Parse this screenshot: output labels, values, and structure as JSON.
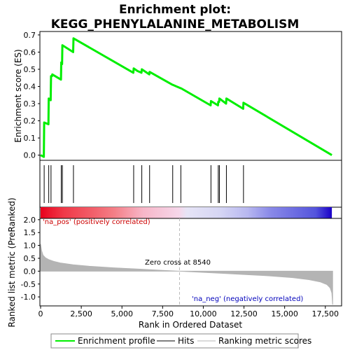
{
  "colors": {
    "es_line": "#00ee00",
    "hit": "#000000",
    "metric_fill": "#b4b4b4",
    "pos_text": "#cc0000",
    "neg_text": "#0000bb",
    "zero_line": "#bbbbbb",
    "heat_pos_strong": "#e8001c",
    "heat_neg_strong": "#1a00c8"
  },
  "chart_data": [
    {
      "type": "line",
      "title_line1": "Enrichment plot:",
      "title_line2": "KEGG_PHENYLALANINE_METABOLISM",
      "ylabel": "Enrichment score (ES)",
      "xlim": [
        0,
        18500
      ],
      "ylim": [
        -0.03,
        0.72
      ],
      "yticks": [
        0.0,
        0.1,
        0.2,
        0.3,
        0.4,
        0.5,
        0.6,
        0.7
      ],
      "ytick_labels": [
        "0.0",
        "0.1",
        "0.2",
        "0.3",
        "0.4",
        "0.5",
        "0.6",
        "0.7"
      ],
      "series": [
        {
          "name": "Enrichment profile",
          "x": [
            0,
            200,
            220,
            480,
            500,
            620,
            640,
            700,
            720,
            1250,
            1270,
            1320,
            1340,
            2000,
            2020,
            5700,
            5720,
            5950,
            6200,
            6220,
            6680,
            6700,
            8100,
            8120,
            8600,
            8620,
            10450,
            10470,
            10900,
            10920,
            10970,
            10990,
            11400,
            11420,
            12450,
            12470,
            17900
          ],
          "y": [
            0.0,
            -0.01,
            0.19,
            0.18,
            0.33,
            0.32,
            0.46,
            0.46,
            0.47,
            0.44,
            0.54,
            0.53,
            0.64,
            0.6,
            0.68,
            0.48,
            0.505,
            0.49,
            0.48,
            0.5,
            0.47,
            0.485,
            0.41,
            0.41,
            0.39,
            0.39,
            0.29,
            0.315,
            0.29,
            0.31,
            0.31,
            0.33,
            0.3,
            0.33,
            0.27,
            0.305,
            0.0
          ]
        }
      ]
    },
    {
      "type": "scatter",
      "series": [
        {
          "name": "Hits",
          "x": [
            220,
            500,
            640,
            1270,
            1340,
            2020,
            5720,
            6220,
            6700,
            8120,
            8620,
            10470,
            10920,
            10990,
            11420,
            12470
          ]
        }
      ]
    },
    {
      "type": "heatmap",
      "gradient_stops": [
        {
          "x": 0,
          "color": "#e8001c"
        },
        {
          "x": 600,
          "color": "#ec1a30"
        },
        {
          "x": 1400,
          "color": "#f03848"
        },
        {
          "x": 3000,
          "color": "#f25a66"
        },
        {
          "x": 4500,
          "color": "#f47e86"
        },
        {
          "x": 6300,
          "color": "#f7b6c8"
        },
        {
          "x": 8500,
          "color": "#f6d7ea"
        },
        {
          "x": 9000,
          "color": "#e6e4f6"
        },
        {
          "x": 11000,
          "color": "#d6d6f4"
        },
        {
          "x": 12700,
          "color": "#b8b8f0"
        },
        {
          "x": 14100,
          "color": "#8a8ae8"
        },
        {
          "x": 16900,
          "color": "#5454dc"
        },
        {
          "x": 17900,
          "color": "#1a00c8"
        }
      ]
    },
    {
      "type": "area",
      "ylabel": "Ranked list metric (PreRanked)",
      "xlabel": "Rank in Ordered Dataset",
      "xlim": [
        0,
        18500
      ],
      "ylim": [
        -1.35,
        2.05
      ],
      "xticks": [
        0,
        2500,
        5000,
        7500,
        10000,
        12500,
        15000,
        17500
      ],
      "xtick_labels": [
        "0",
        "2,500",
        "5,000",
        "7,500",
        "10,000",
        "12,500",
        "15,000",
        "17,500"
      ],
      "yticks": [
        2.0,
        1.5,
        1.0,
        0.5,
        0.0,
        -0.5,
        -1.0
      ],
      "ytick_labels": [
        "2.0",
        "1.5",
        "1.0",
        "0.5",
        "0.0",
        "-0.5",
        "-1.0"
      ],
      "zero_cross": 8540,
      "zero_cross_label": "Zero cross at 8540",
      "pos_label": "'na_pos' (positively correlated)",
      "neg_label": "'na_neg' (negatively correlated)",
      "series": [
        {
          "name": "Ranking metric scores",
          "x": [
            0,
            60,
            150,
            300,
            500,
            800,
            1200,
            2000,
            3000,
            4500,
            6000,
            7500,
            8540,
            9500,
            11000,
            12500,
            14000,
            15500,
            16500,
            17200,
            17600,
            17800,
            17900,
            17950
          ],
          "y": [
            1.05,
            0.8,
            0.62,
            0.52,
            0.45,
            0.38,
            0.32,
            0.25,
            0.19,
            0.13,
            0.08,
            0.03,
            0.0,
            -0.03,
            -0.08,
            -0.13,
            -0.18,
            -0.25,
            -0.33,
            -0.42,
            -0.52,
            -0.65,
            -0.85,
            -1.3
          ]
        }
      ]
    }
  ],
  "legend": {
    "items": [
      {
        "label": "Enrichment profile",
        "swatch": "es"
      },
      {
        "label": "Hits",
        "swatch": "hit"
      },
      {
        "label": "Ranking metric scores",
        "swatch": "metric"
      }
    ]
  }
}
